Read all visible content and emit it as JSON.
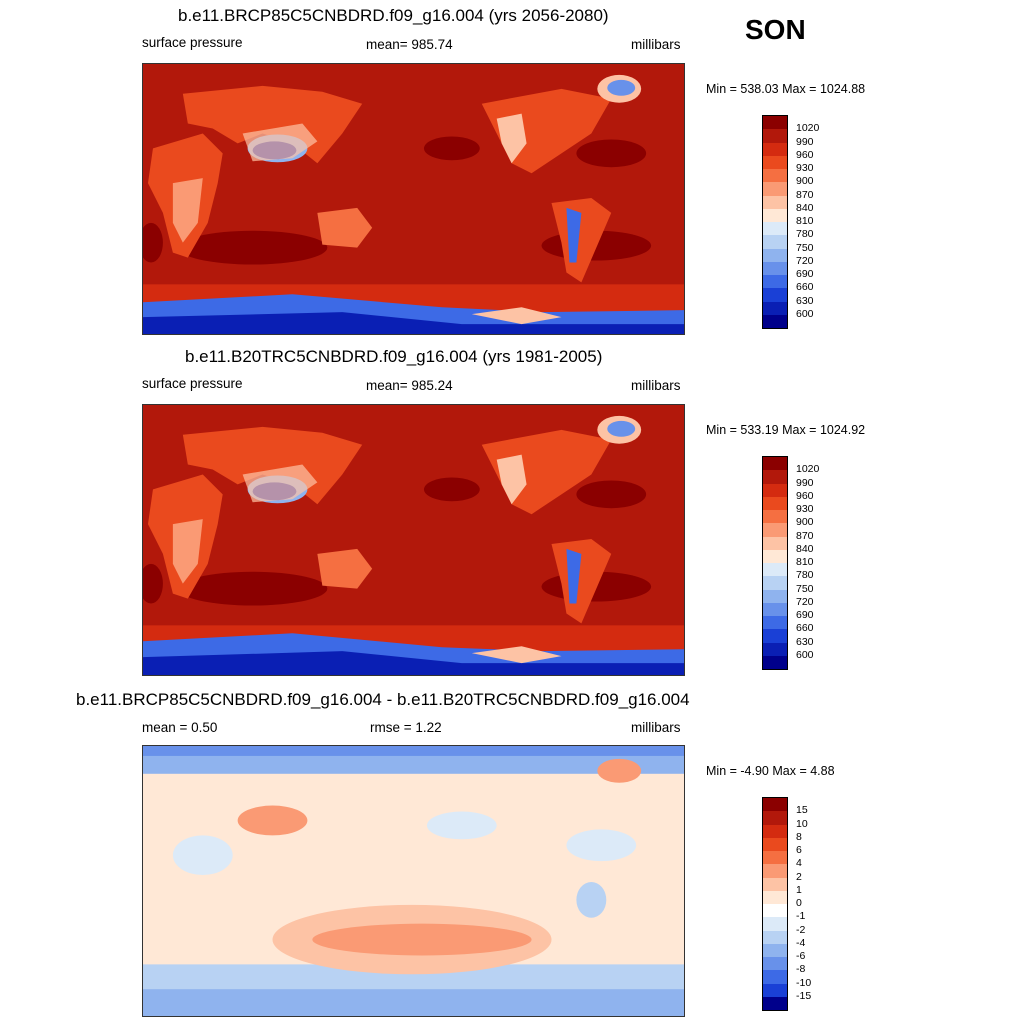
{
  "season": "SON",
  "panels": [
    {
      "title": "b.e11.BRCP85C5CNBDRD.f09_g16.004 (yrs 2056-2080)",
      "left": "surface pressure",
      "center": "mean= 985.74",
      "right": "millibars",
      "minmax": "Min = 538.03 Max = 1024.88",
      "colorbar": {
        "labels": [
          "1020",
          "990",
          "960",
          "930",
          "900",
          "870",
          "840",
          "810",
          "780",
          "750",
          "720",
          "690",
          "660",
          "630",
          "600"
        ],
        "colors": [
          "#8b0000",
          "#b2180b",
          "#d42b10",
          "#ea4a1e",
          "#f56f41",
          "#fa9a74",
          "#fdc3a5",
          "#ffe8d6",
          "#dceaf8",
          "#b8d2f3",
          "#8fb3ee",
          "#6891ea",
          "#3d6ae6",
          "#1a40d6",
          "#0a1fb4",
          "#00008b"
        ]
      }
    },
    {
      "title": "b.e11.B20TRC5CNBDRD.f09_g16.004 (yrs 1981-2005)",
      "left": "surface pressure",
      "center": "mean= 985.24",
      "right": "millibars",
      "minmax": "Min = 533.19 Max = 1024.92",
      "colorbar": {
        "labels": [
          "1020",
          "990",
          "960",
          "930",
          "900",
          "870",
          "840",
          "810",
          "780",
          "750",
          "720",
          "690",
          "660",
          "630",
          "600"
        ],
        "colors": [
          "#8b0000",
          "#b2180b",
          "#d42b10",
          "#ea4a1e",
          "#f56f41",
          "#fa9a74",
          "#fdc3a5",
          "#ffe8d6",
          "#dceaf8",
          "#b8d2f3",
          "#8fb3ee",
          "#6891ea",
          "#3d6ae6",
          "#1a40d6",
          "#0a1fb4",
          "#00008b"
        ]
      }
    },
    {
      "title": "b.e11.BRCP85C5CNBDRD.f09_g16.004 - b.e11.B20TRC5CNBDRD.f09_g16.004",
      "left": "mean =   0.50",
      "center": "rmse =   1.22",
      "right": "millibars",
      "minmax": "Min =  -4.90 Max =   4.88",
      "colorbar": {
        "labels": [
          "15",
          "10",
          "8",
          "6",
          "4",
          "2",
          "1",
          "0",
          "-1",
          "-2",
          "-4",
          "-6",
          "-8",
          "-10",
          "-15"
        ],
        "colors": [
          "#8b0000",
          "#b2180b",
          "#d42b10",
          "#ea4a1e",
          "#f56f41",
          "#fa9a74",
          "#fdc3a5",
          "#ffe8d6",
          "#ffffff",
          "#dceaf8",
          "#b8d2f3",
          "#8fb3ee",
          "#6891ea",
          "#3d6ae6",
          "#1a40d6",
          "#00008b"
        ]
      }
    }
  ]
}
